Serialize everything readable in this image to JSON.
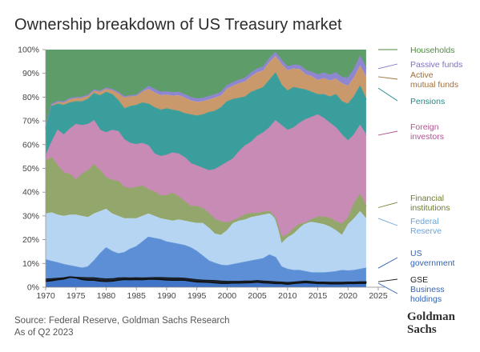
{
  "title": "Ownership breakdown of US Treasury market",
  "source": {
    "line1": "Source: Federal Reserve, Goldman Sachs Research",
    "line2": "As of Q2 2023"
  },
  "logo": {
    "line1": "Goldman",
    "line2": "Sachs"
  },
  "chart_data": {
    "type": "area",
    "stacked": true,
    "normalized": true,
    "title": "Ownership breakdown of US Treasury market",
    "x_ticks": [
      1970,
      1975,
      1980,
      1985,
      1990,
      1995,
      2000,
      2005,
      2010,
      2015,
      2020,
      2025
    ],
    "y_ticks": [
      "0%",
      "10%",
      "20%",
      "30%",
      "40%",
      "50%",
      "60%",
      "70%",
      "80%",
      "90%",
      "100%"
    ],
    "ylim": [
      0,
      100
    ],
    "xlim": [
      1970,
      2025
    ],
    "x": [
      1970,
      1971,
      1972,
      1973,
      1974,
      1975,
      1976,
      1977,
      1978,
      1979,
      1980,
      1981,
      1982,
      1983,
      1984,
      1985,
      1986,
      1987,
      1988,
      1989,
      1990,
      1991,
      1992,
      1993,
      1994,
      1995,
      1996,
      1997,
      1998,
      1999,
      2000,
      2001,
      2002,
      2003,
      2004,
      2005,
      2006,
      2007,
      2008,
      2009,
      2010,
      2011,
      2012,
      2013,
      2014,
      2015,
      2016,
      2017,
      2018,
      2019,
      2020,
      2021,
      2022,
      2023
    ],
    "cumulative_boundaries": [
      {
        "name": "Business holdings",
        "values": [
          2.5,
          2.8,
          3.2,
          3.5,
          4.2,
          4.0,
          3.3,
          3.0,
          3.0,
          2.6,
          2.5,
          2.6,
          3.0,
          3.3,
          3.2,
          3.3,
          3.2,
          3.4,
          3.4,
          3.3,
          3.1,
          3.0,
          3.0,
          3.0,
          2.6,
          2.3,
          2.2,
          2.1,
          1.9,
          1.7,
          1.7,
          1.8,
          1.8,
          1.9,
          2.0,
          2.2,
          1.9,
          1.8,
          1.6,
          1.6,
          1.3,
          1.6,
          1.8,
          2.0,
          1.8,
          1.6,
          1.6,
          1.5,
          1.5,
          1.5,
          1.6,
          1.6,
          1.7,
          1.7
        ]
      },
      {
        "name": "GSE",
        "values": [
          3.5,
          3.6,
          3.8,
          4.0,
          4.4,
          4.2,
          4.1,
          4.0,
          4.0,
          3.7,
          3.5,
          3.6,
          3.9,
          4.0,
          3.9,
          4.0,
          3.9,
          4.0,
          4.1,
          4.1,
          4.0,
          3.9,
          3.9,
          3.8,
          3.5,
          3.2,
          3.0,
          2.9,
          2.8,
          2.6,
          2.5,
          2.5,
          2.5,
          2.6,
          2.6,
          2.8,
          2.6,
          2.5,
          2.3,
          2.2,
          2.0,
          2.2,
          2.4,
          2.6,
          2.4,
          2.2,
          2.2,
          2.1,
          2.1,
          2.1,
          2.2,
          2.2,
          2.3,
          2.3
        ]
      },
      {
        "name": "US government",
        "values": [
          11.5,
          10.8,
          10.2,
          9.5,
          9.0,
          8.5,
          8.0,
          8.5,
          11.0,
          14.0,
          16.5,
          15.0,
          14.0,
          14.5,
          16.0,
          17.0,
          19.0,
          21.0,
          20.5,
          20.0,
          19.0,
          18.5,
          18.0,
          17.5,
          16.5,
          15.0,
          13.0,
          11.0,
          10.0,
          9.2,
          9.0,
          9.5,
          10.0,
          10.5,
          11.0,
          11.5,
          12.0,
          13.5,
          12.5,
          8.5,
          7.5,
          7.0,
          7.0,
          6.5,
          6.0,
          6.0,
          6.0,
          6.2,
          6.5,
          7.0,
          6.8,
          7.0,
          7.5,
          8.0
        ]
      },
      {
        "name": "Federal Reserve",
        "values": [
          31.0,
          31.5,
          30.5,
          30.0,
          30.5,
          30.5,
          30.0,
          29.5,
          31.0,
          32.0,
          33.0,
          31.0,
          30.0,
          29.0,
          29.0,
          29.0,
          30.0,
          31.0,
          30.0,
          29.0,
          28.5,
          28.0,
          28.5,
          28.0,
          27.5,
          27.0,
          27.0,
          25.0,
          22.5,
          22.0,
          24.0,
          27.0,
          28.0,
          28.5,
          29.5,
          30.0,
          30.5,
          31.0,
          29.5,
          18.5,
          21.0,
          22.5,
          25.0,
          27.0,
          27.5,
          27.0,
          26.5,
          25.5,
          24.0,
          22.0,
          26.5,
          29.0,
          32.0,
          29.0
        ]
      },
      {
        "name": "Financial institutions",
        "values": [
          53.0,
          54.5,
          51.0,
          48.0,
          47.5,
          45.0,
          47.5,
          49.0,
          51.5,
          49.0,
          46.0,
          45.0,
          44.5,
          42.0,
          41.5,
          42.0,
          42.5,
          41.0,
          40.0,
          38.5,
          38.5,
          39.5,
          38.0,
          36.0,
          34.0,
          34.0,
          33.0,
          31.0,
          28.5,
          27.5,
          27.0,
          28.0,
          29.0,
          30.5,
          31.0,
          31.0,
          31.5,
          32.0,
          29.0,
          21.0,
          22.0,
          24.5,
          26.5,
          27.0,
          28.5,
          29.5,
          29.5,
          29.0,
          27.5,
          26.5,
          29.0,
          35.0,
          39.0,
          34.0
        ]
      },
      {
        "name": "Foreign investors",
        "values": [
          55.0,
          61.0,
          66.0,
          64.0,
          66.5,
          68.5,
          68.0,
          68.5,
          70.0,
          66.0,
          65.0,
          66.0,
          65.5,
          62.0,
          60.5,
          60.0,
          60.5,
          59.5,
          56.0,
          55.0,
          55.5,
          56.5,
          56.0,
          54.5,
          52.0,
          51.0,
          50.0,
          49.0,
          49.5,
          51.0,
          52.5,
          54.0,
          57.0,
          59.5,
          61.0,
          63.5,
          65.0,
          67.0,
          70.0,
          68.0,
          66.0,
          67.0,
          69.0,
          70.5,
          71.5,
          72.5,
          71.0,
          69.0,
          67.0,
          64.0,
          61.5,
          64.0,
          68.0,
          64.0
        ]
      },
      {
        "name": "Pensions",
        "values": [
          66.5,
          76.0,
          77.0,
          76.5,
          77.5,
          78.0,
          78.0,
          79.0,
          81.5,
          80.5,
          82.0,
          81.0,
          78.5,
          75.0,
          76.0,
          76.5,
          77.5,
          77.0,
          75.5,
          74.5,
          75.0,
          74.5,
          74.0,
          73.0,
          72.5,
          72.0,
          72.5,
          73.5,
          74.0,
          75.5,
          78.0,
          79.0,
          79.5,
          80.0,
          82.0,
          83.0,
          84.0,
          87.0,
          90.0,
          85.0,
          82.5,
          84.0,
          83.5,
          83.0,
          82.0,
          81.0,
          81.0,
          80.0,
          81.0,
          78.0,
          77.0,
          80.0,
          84.5,
          79.0
        ]
      },
      {
        "name": "Active mutual funds",
        "values": [
          66.8,
          76.8,
          78.0,
          77.8,
          79.2,
          79.6,
          79.8,
          80.6,
          82.8,
          82.3,
          83.6,
          83.0,
          81.8,
          80.0,
          80.4,
          80.6,
          82.4,
          83.4,
          82.0,
          80.8,
          81.0,
          80.6,
          80.8,
          79.8,
          78.6,
          78.0,
          78.3,
          79.0,
          79.8,
          80.7,
          83.5,
          84.8,
          85.8,
          86.6,
          88.8,
          90.4,
          91.3,
          94.7,
          97.3,
          94.0,
          91.3,
          92.0,
          91.8,
          89.6,
          88.8,
          87.2,
          88.0,
          87.0,
          87.8,
          85.8,
          84.8,
          88.4,
          93.3,
          88.6
        ]
      },
      {
        "name": "Passive funds",
        "values": [
          67.0,
          77.0,
          78.2,
          78.0,
          79.4,
          79.8,
          80.0,
          80.8,
          83.0,
          82.5,
          83.8,
          83.2,
          82.0,
          80.2,
          80.6,
          80.8,
          82.6,
          84.5,
          83.2,
          82.0,
          82.2,
          81.8,
          82.0,
          81.0,
          79.8,
          79.2,
          79.5,
          80.2,
          81.0,
          82.0,
          84.8,
          86.1,
          87.1,
          88.0,
          90.2,
          91.8,
          92.7,
          96.1,
          98.7,
          95.4,
          92.7,
          93.4,
          93.3,
          91.2,
          90.4,
          89.3,
          90.1,
          89.2,
          90.2,
          88.2,
          88.0,
          91.6,
          97.0,
          92.0
        ]
      },
      {
        "name": "Households",
        "values": [
          100,
          100,
          100,
          100,
          100,
          100,
          100,
          100,
          100,
          100,
          100,
          100,
          100,
          100,
          100,
          100,
          100,
          100,
          100,
          100,
          100,
          100,
          100,
          100,
          100,
          100,
          100,
          100,
          100,
          100,
          100,
          100,
          100,
          100,
          100,
          100,
          100,
          100,
          100,
          100,
          100,
          100,
          100,
          100,
          100,
          100,
          100,
          100,
          100,
          100,
          100,
          100,
          100,
          100
        ]
      }
    ],
    "series": [
      {
        "name": "Households",
        "color": "#5e9c6a"
      },
      {
        "name": "Passive funds",
        "color": "#8f86d0"
      },
      {
        "name": "Active mutual funds",
        "color": "#c9996c"
      },
      {
        "name": "Pensions",
        "color": "#3a9e9c"
      },
      {
        "name": "Foreign investors",
        "color": "#c78bb5"
      },
      {
        "name": "Financial institutions",
        "color": "#93a66c"
      },
      {
        "name": "Federal Reserve",
        "color": "#b5d5f3"
      },
      {
        "name": "US government",
        "color": "#5c8fd5"
      },
      {
        "name": "GSE",
        "color": "#1d2a3a"
      },
      {
        "name": "Business holdings",
        "color": "#3f74c6"
      }
    ],
    "legend_labels": [
      {
        "text": [
          "Households"
        ],
        "color": "#4e8a3e"
      },
      {
        "text": [
          "Passive funds"
        ],
        "color": "#7e70c8"
      },
      {
        "text": [
          "Active",
          "mutual funds"
        ],
        "color": "#a0703d"
      },
      {
        "text": [
          "Pensions"
        ],
        "color": "#1f8a87"
      },
      {
        "text": [
          "Foreign",
          "investors"
        ],
        "color": "#b05592"
      },
      {
        "text": [
          "Financial",
          "institutions"
        ],
        "color": "#6b7f2c"
      },
      {
        "text": [
          "Federal",
          "Reserve"
        ],
        "color": "#6aa3d6"
      },
      {
        "text": [
          "US",
          "government"
        ],
        "color": "#2f62b8"
      },
      {
        "text": [
          "GSE"
        ],
        "color": "#222222"
      },
      {
        "text": [
          "Business",
          "holdings"
        ],
        "color": "#2f62b8"
      }
    ],
    "legend_placement": "right",
    "grid": false
  }
}
